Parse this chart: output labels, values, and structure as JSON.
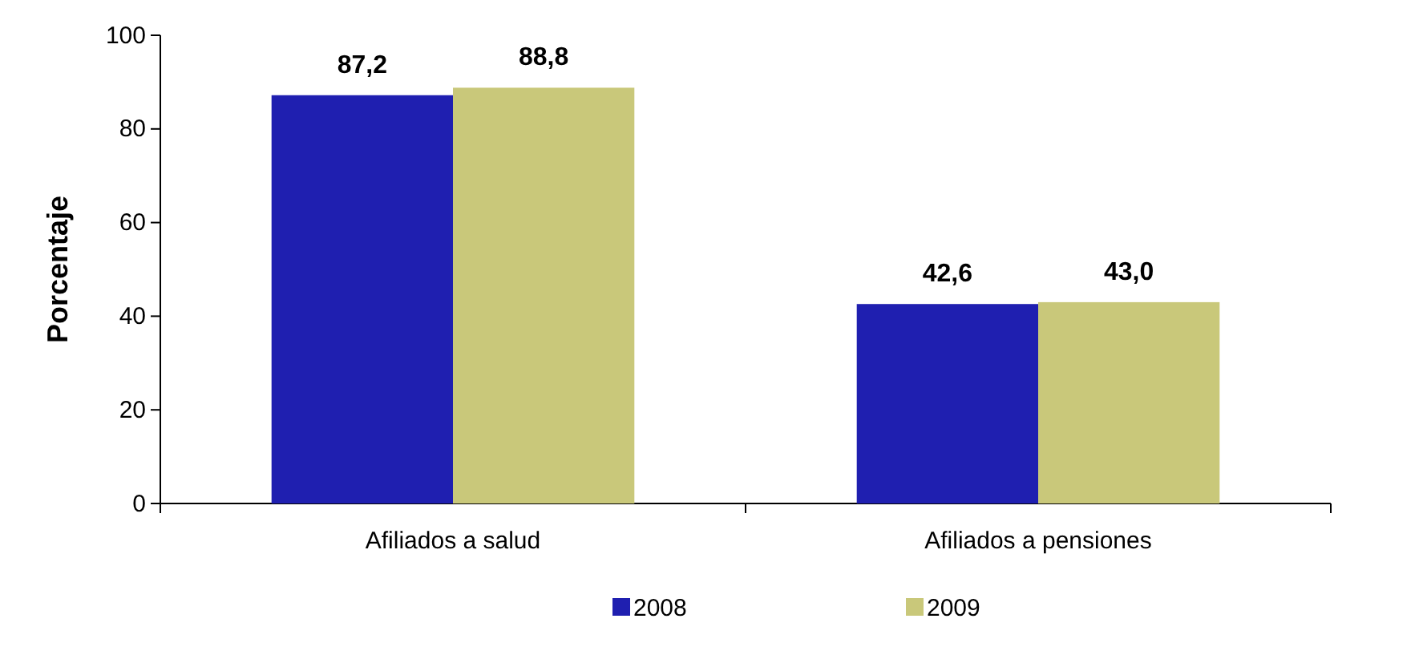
{
  "chart_data": {
    "type": "bar",
    "ylabel": "Porcentaje",
    "categories": [
      "Afiliados a salud",
      "Afiliados a pensiones"
    ],
    "series": [
      {
        "name": "2008",
        "color": "#1f1fb0",
        "values": [
          87.2,
          42.6
        ],
        "value_labels": [
          "87,2",
          "42,6"
        ]
      },
      {
        "name": "2009",
        "color": "#c9c87a",
        "values": [
          88.8,
          43.0
        ],
        "value_labels": [
          "88,8",
          "43,0"
        ]
      }
    ],
    "ylim": [
      0,
      100
    ],
    "yticks": [
      0,
      20,
      40,
      60,
      80,
      100
    ],
    "grid": false,
    "legend": "bottom"
  }
}
